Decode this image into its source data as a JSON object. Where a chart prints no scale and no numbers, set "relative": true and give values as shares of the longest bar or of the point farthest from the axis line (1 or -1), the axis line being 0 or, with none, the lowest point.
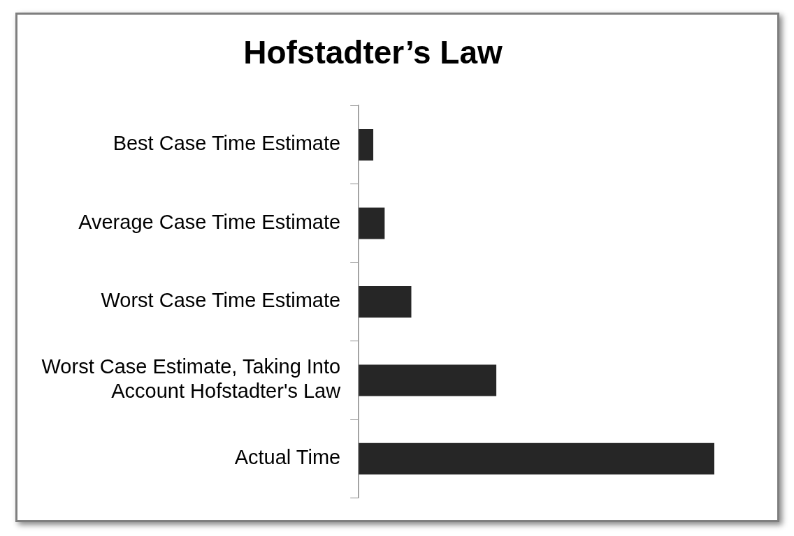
{
  "chart_data": {
    "type": "bar",
    "orientation": "horizontal",
    "relative": true,
    "title": "Hofstadter’s Law",
    "categories": [
      "Best Case Time Estimate",
      "Average Case Time Estimate",
      "Worst Case Time Estimate",
      "Worst Case Estimate, Taking Into Account Hofstadter's Law",
      "Actual Time"
    ],
    "values": [
      0.041,
      0.073,
      0.148,
      0.387,
      1
    ],
    "color": "#262626",
    "legend": false,
    "grid": false
  }
}
